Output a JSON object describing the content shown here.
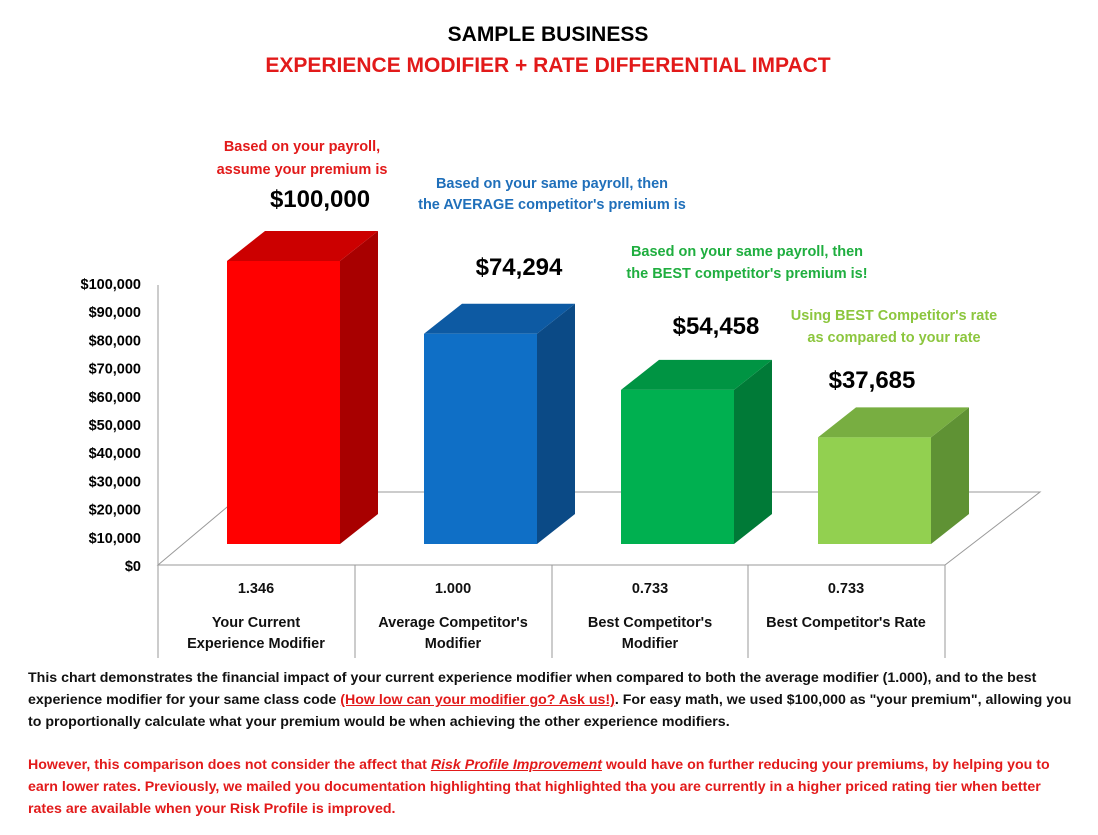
{
  "chart_data": {
    "type": "bar",
    "title": "SAMPLE BUSINESS",
    "subtitle": "EXPERIENCE MODIFIER + RATE DIFFERENTIAL IMPACT",
    "ylim": [
      0,
      100000
    ],
    "y_ticks": [
      "$0",
      "$10,000",
      "$20,000",
      "$30,000",
      "$40,000",
      "$50,000",
      "$60,000",
      "$70,000",
      "$80,000",
      "$90,000",
      "$100,000"
    ],
    "categories": [
      {
        "modifier": "1.346",
        "label_line1": "Your Current",
        "label_line2": "Experience Modifier"
      },
      {
        "modifier": "1.000",
        "label_line1": "Average Competitor's",
        "label_line2": "Modifier"
      },
      {
        "modifier": "0.733",
        "label_line1": "Best Competitor's",
        "label_line2": "Modifier"
      },
      {
        "modifier": "0.733",
        "label_line1": "Best Competitor's Rate",
        "label_line2": ""
      }
    ],
    "values": [
      100000,
      74294,
      54458,
      37685
    ],
    "value_labels": [
      "$100,000",
      "$74,294",
      "$54,458",
      "$37,685"
    ],
    "annotations": [
      {
        "line1": "Based on your payroll,",
        "line2": "assume your premium is",
        "color": "#e21a1a"
      },
      {
        "line1": "Based on your same payroll, then",
        "line2": "the AVERAGE competitor's premium is",
        "color": "#1f6fba"
      },
      {
        "line1": "Based on your same payroll, then",
        "line2": "the BEST competitor's premium is!",
        "color": "#1fae3f"
      },
      {
        "line1": "Using BEST Competitor's rate",
        "line2": "as compared to your rate",
        "color": "#8cc63e"
      }
    ],
    "colors": [
      {
        "front": "#ff0000",
        "side": "#a80000",
        "top": "#cc0000"
      },
      {
        "front": "#0f6fc6",
        "side": "#0b4a86",
        "top": "#0d5aa3"
      },
      {
        "front": "#00b050",
        "side": "#007a37",
        "top": "#009443"
      },
      {
        "front": "#92d050",
        "side": "#5f9234",
        "top": "#78ae41"
      }
    ]
  },
  "footer": {
    "p1_before": "This chart demonstrates the financial impact of your current experience modifier when compared to both the average modifier (1.000), and to the best experience modifier for your same class code ",
    "p1_link": "(How low can your modifier go? Ask us!)",
    "p1_after": ". For easy math, we used $100,000 as \"your premium\", allowing you to proportionally calculate what your premium would be when achieving the other experience modifiers.",
    "p2_before": "However, this comparison does not consider the affect that ",
    "p2_em": "Risk Profile Improvement",
    "p2_after": " would have on further reducing your premiums, by helping you to earn lower rates.  Previously, we mailed you documentation highlighting that highlighted tha you are currently in a higher priced rating tier when better rates are available when your Risk Profile is improved."
  }
}
